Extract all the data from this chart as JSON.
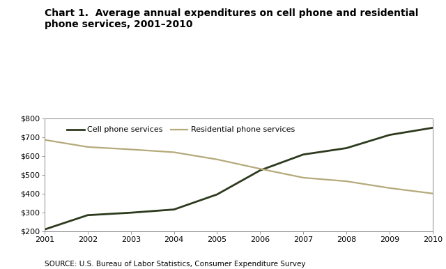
{
  "title_line1": "Chart 1.  Average annual expenditures on cell phone and residential",
  "title_line2": "phone services, 2001–2010",
  "source": "SOURCE: U.S. Bureau of Labor Statistics, Consumer Expenditure Survey",
  "years": [
    2001,
    2002,
    2003,
    2004,
    2005,
    2006,
    2007,
    2008,
    2009,
    2010
  ],
  "cell_phone": [
    210,
    286,
    299,
    316,
    396,
    524,
    608,
    642,
    712,
    750
  ],
  "residential": [
    686,
    648,
    635,
    620,
    582,
    532,
    485,
    466,
    430,
    401
  ],
  "cell_color": "#2d3a1e",
  "residential_color": "#b5a97a",
  "plot_bg_color": "#ffffff",
  "fig_bg_color": "#ffffff",
  "ylim": [
    200,
    800
  ],
  "yticks": [
    200,
    300,
    400,
    500,
    600,
    700,
    800
  ],
  "cell_label": "Cell phone services",
  "residential_label": "Residential phone services",
  "title_fontsize": 10,
  "axis_fontsize": 8,
  "legend_fontsize": 8,
  "source_fontsize": 7.5
}
